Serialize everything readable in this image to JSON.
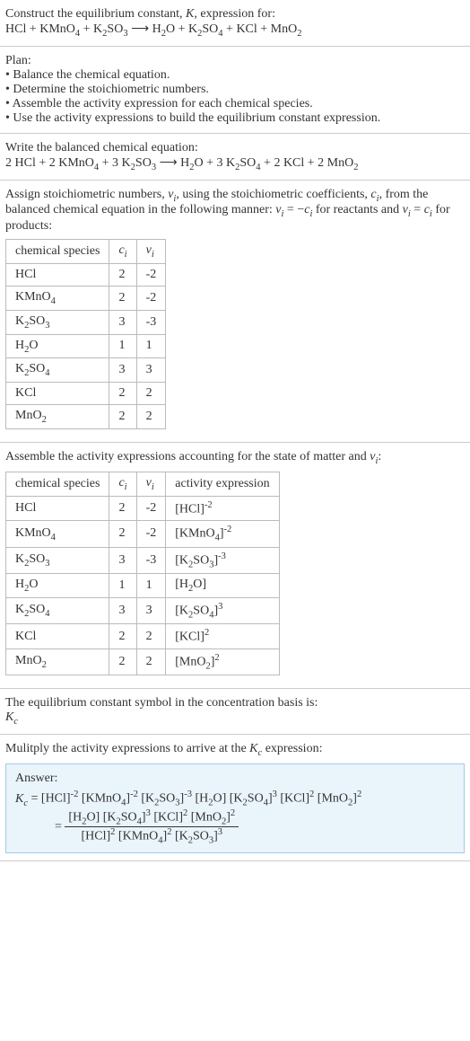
{
  "header": {
    "line1": "Construct the equilibrium constant, K, expression for:",
    "equation": "HCl + KMnO₄ + K₂SO₃ ⟶ H₂O + K₂SO₄ + KCl + MnO₂"
  },
  "plan": {
    "title": "Plan:",
    "items": [
      "Balance the chemical equation.",
      "Determine the stoichiometric numbers.",
      "Assemble the activity expression for each chemical species.",
      "Use the activity expressions to build the equilibrium constant expression."
    ]
  },
  "balanced": {
    "title": "Write the balanced chemical equation:",
    "equation": "2 HCl + 2 KMnO₄ + 3 K₂SO₃ ⟶ H₂O + 3 K₂SO₄ + 2 KCl + 2 MnO₂"
  },
  "assign": {
    "intro": "Assign stoichiometric numbers, νᵢ, using the stoichiometric coefficients, cᵢ, from the balanced chemical equation in the following manner: νᵢ = −cᵢ for reactants and νᵢ = cᵢ for products:",
    "headers": {
      "species": "chemical species",
      "ci": "cᵢ",
      "vi": "νᵢ"
    },
    "rows": [
      {
        "species": "HCl",
        "ci": "2",
        "vi": "-2"
      },
      {
        "species": "KMnO₄",
        "ci": "2",
        "vi": "-2"
      },
      {
        "species": "K₂SO₃",
        "ci": "3",
        "vi": "-3"
      },
      {
        "species": "H₂O",
        "ci": "1",
        "vi": "1"
      },
      {
        "species": "K₂SO₄",
        "ci": "3",
        "vi": "3"
      },
      {
        "species": "KCl",
        "ci": "2",
        "vi": "2"
      },
      {
        "species": "MnO₂",
        "ci": "2",
        "vi": "2"
      }
    ]
  },
  "activity": {
    "intro": "Assemble the activity expressions accounting for the state of matter and νᵢ:",
    "headers": {
      "species": "chemical species",
      "ci": "cᵢ",
      "vi": "νᵢ",
      "act": "activity expression"
    },
    "rows": [
      {
        "species": "HCl",
        "ci": "2",
        "vi": "-2",
        "act": "[HCl]⁻²"
      },
      {
        "species": "KMnO₄",
        "ci": "2",
        "vi": "-2",
        "act": "[KMnO₄]⁻²"
      },
      {
        "species": "K₂SO₃",
        "ci": "3",
        "vi": "-3",
        "act": "[K₂SO₃]⁻³"
      },
      {
        "species": "H₂O",
        "ci": "1",
        "vi": "1",
        "act": "[H₂O]"
      },
      {
        "species": "K₂SO₄",
        "ci": "3",
        "vi": "3",
        "act": "[K₂SO₄]³"
      },
      {
        "species": "KCl",
        "ci": "2",
        "vi": "2",
        "act": "[KCl]²"
      },
      {
        "species": "MnO₂",
        "ci": "2",
        "vi": "2",
        "act": "[MnO₂]²"
      }
    ]
  },
  "symbol": {
    "line1": "The equilibrium constant symbol in the concentration basis is:",
    "line2": "K_c"
  },
  "multiply": {
    "intro": "Mulitply the activity expressions to arrive at the K_c expression:",
    "answer_label": "Answer:",
    "expr_flat": "K_c = [HCl]⁻² [KMnO₄]⁻² [K₂SO₃]⁻³ [H₂O] [K₂SO₄]³ [KCl]² [MnO₂]²",
    "frac_num": "[H₂O] [K₂SO₄]³ [KCl]² [MnO₂]²",
    "frac_den": "[HCl]² [KMnO₄]² [K₂SO₃]³"
  },
  "colors": {
    "border": "#cccccc",
    "table_border": "#bbbbbb",
    "answer_bg": "#eaf4fb",
    "answer_border": "#9ecce8",
    "text": "#333333"
  }
}
